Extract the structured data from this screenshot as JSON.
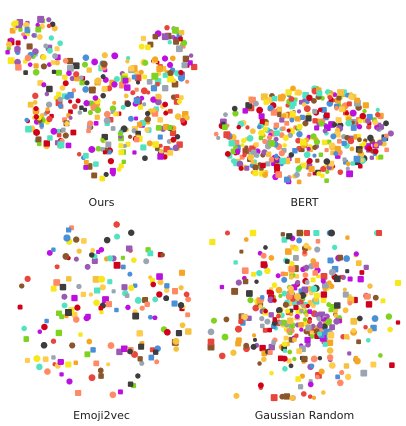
{
  "panels": [
    {
      "label": "Ours"
    },
    {
      "label": "BERT"
    },
    {
      "label": "Emoji2vec"
    },
    {
      "label": "Gaussian Random"
    }
  ],
  "palette": [
    "#f6c23e",
    "#f5a623",
    "#e8453c",
    "#4a90d9",
    "#7ed321",
    "#9b59b6",
    "#8b572a",
    "#50e3c2",
    "#f8e71c",
    "#d0021b",
    "#bd10e0",
    "#9aa5b1",
    "#ffcc4d",
    "#ff8a65",
    "#3d3d3d"
  ]
}
